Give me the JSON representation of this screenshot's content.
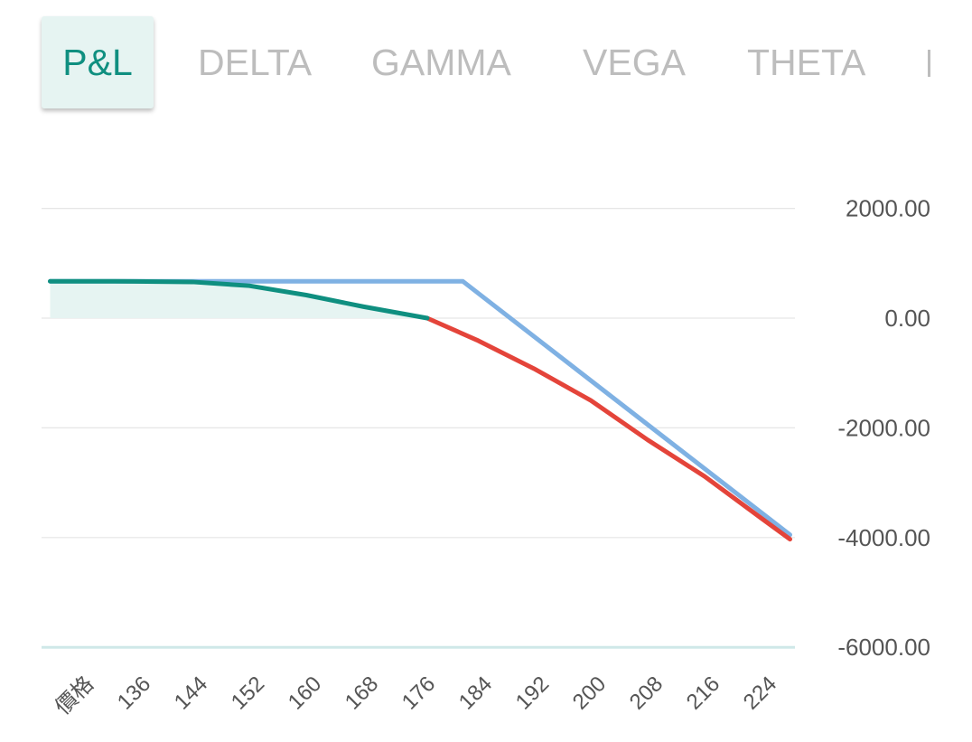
{
  "tabs": [
    {
      "label": "P&L",
      "active": true
    },
    {
      "label": "DELTA",
      "active": false
    },
    {
      "label": "GAMMA",
      "active": false
    },
    {
      "label": "VEGA",
      "active": false
    },
    {
      "label": "THETA",
      "active": false
    }
  ],
  "colors": {
    "accent": "#0f8f80",
    "expiry_line": "#7fb1e3",
    "loss_line": "#e4443a",
    "profit_fill": "#e6f4f2",
    "inactive_tab": "#bdbdbd"
  },
  "chart_data": {
    "type": "line",
    "xlabel": "價格",
    "x_ticks": [
      136,
      144,
      152,
      160,
      168,
      176,
      184,
      192,
      200,
      208,
      216,
      224
    ],
    "y_ticks": [
      "2000.00",
      "0.00",
      "-2000.00",
      "-4000.00",
      "-6000.00"
    ],
    "ylim": [
      -6000,
      2000
    ],
    "xlim": [
      124,
      228
    ],
    "grid": true,
    "series": [
      {
        "role": "at-expiry",
        "color": "#7fb1e3",
        "points": [
          [
            124,
            672
          ],
          [
            182,
            672
          ],
          [
            228,
            -3950
          ]
        ]
      },
      {
        "role": "current",
        "color_profit": "#0f8f80",
        "color_loss": "#e4443a",
        "points": [
          [
            124,
            672
          ],
          [
            136,
            670
          ],
          [
            144,
            660
          ],
          [
            152,
            590
          ],
          [
            160,
            420
          ],
          [
            168,
            210
          ],
          [
            177,
            0
          ],
          [
            184,
            -400
          ],
          [
            192,
            -920
          ],
          [
            200,
            -1500
          ],
          [
            208,
            -2220
          ],
          [
            216,
            -2885
          ],
          [
            224,
            -3650
          ],
          [
            228,
            -4030
          ]
        ]
      }
    ]
  }
}
